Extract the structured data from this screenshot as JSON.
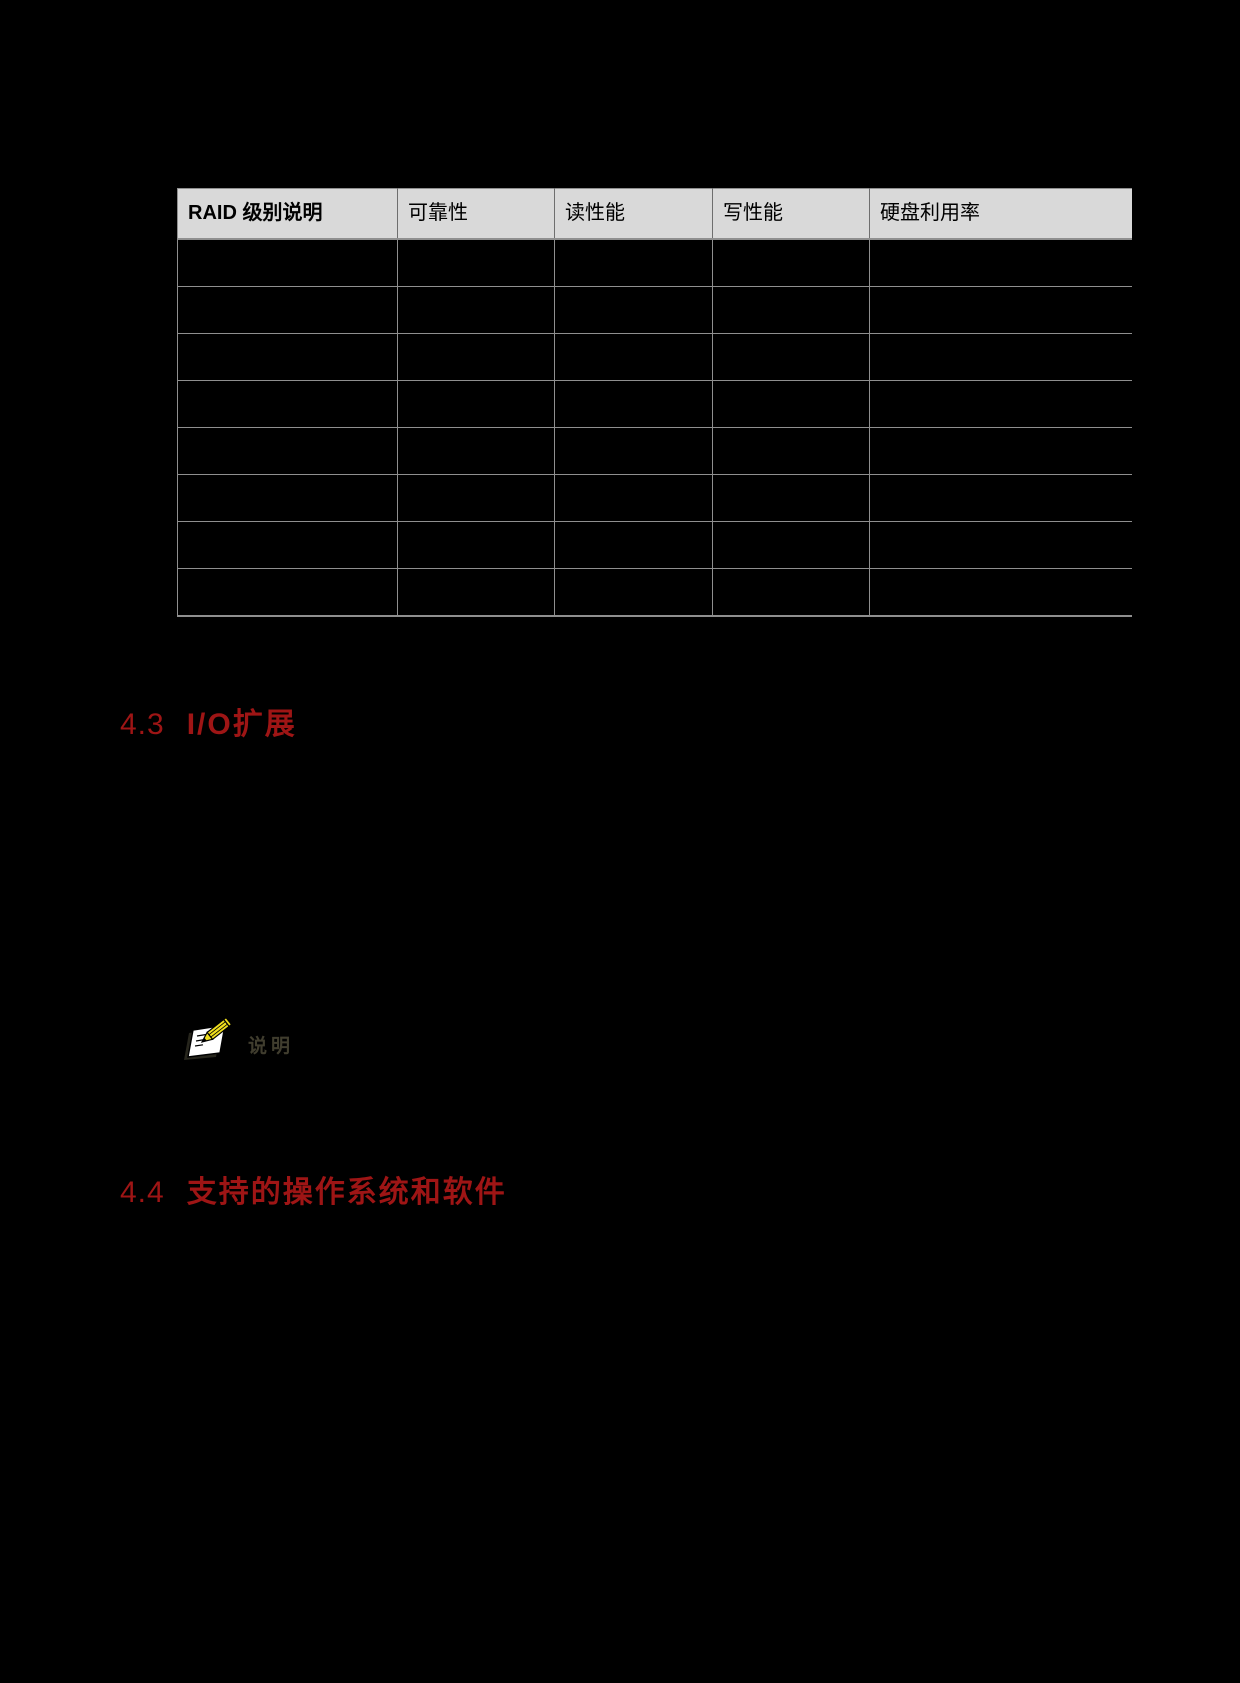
{
  "page": {
    "background": "#000000"
  },
  "table": {
    "headers": [
      "RAID 级别说明",
      "可靠性",
      "读性能",
      "写性能",
      "硬盘利用率"
    ],
    "rows": [
      [
        "",
        "",
        "",
        "",
        ""
      ],
      [
        "",
        "",
        "",
        "",
        ""
      ],
      [
        "",
        "",
        "",
        "",
        ""
      ],
      [
        "",
        "",
        "",
        "",
        ""
      ],
      [
        "",
        "",
        "",
        "",
        ""
      ],
      [
        "",
        "",
        "",
        "",
        ""
      ],
      [
        "",
        "",
        "",
        "",
        ""
      ],
      [
        "",
        "",
        "",
        "",
        ""
      ]
    ]
  },
  "sections": [
    {
      "number": "4.3",
      "title": "I/O扩展"
    },
    {
      "number": "4.4",
      "title": "支持的操作系统和软件"
    }
  ],
  "note": {
    "label": "说明"
  },
  "colors": {
    "page_bg": "#000000",
    "heading_red": "#9E1515",
    "header_bg": "#D9D9D9",
    "border_gray": "#8F8F8F",
    "note_label": "#403D2E",
    "pencil_yellow": "#F0DF1E"
  }
}
